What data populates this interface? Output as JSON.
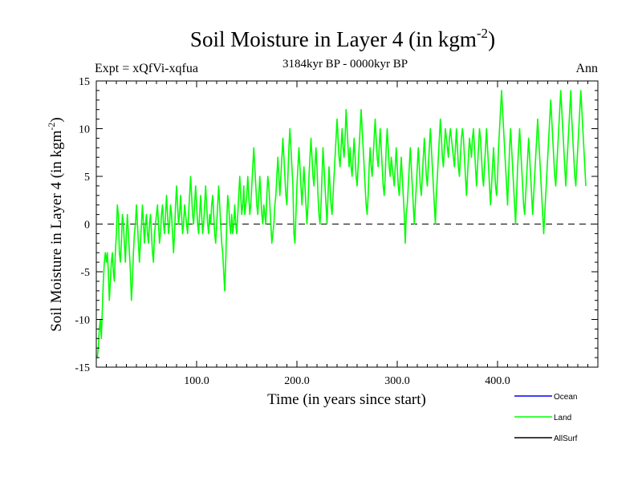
{
  "chart_data": {
    "type": "line",
    "title": "Soil Moisture in Layer 4 (in kgm",
    "title_sup": "-2",
    "title_close": ")",
    "subtitle": "3184kyr BP - 0000kyr BP",
    "expt_label": "Expt = xQfVi-xqfua",
    "season_label": "Ann",
    "xlabel": "Time (in years since start)",
    "ylabel": "Soil Moisture in Layer 4 (in kgm",
    "ylabel_sup": "-2",
    "ylabel_close": ")",
    "xlim": [
      0,
      500
    ],
    "ylim": [
      -15,
      15
    ],
    "x_ticks": [
      {
        "value": 100,
        "label": "100.0"
      },
      {
        "value": 200,
        "label": "200.0"
      },
      {
        "value": 300,
        "label": "300.0"
      },
      {
        "value": 400,
        "label": "400.0"
      }
    ],
    "y_ticks": [
      {
        "value": 15,
        "label": "15"
      },
      {
        "value": 10,
        "label": "10"
      },
      {
        "value": 5,
        "label": "5"
      },
      {
        "value": 0,
        "label": "0"
      },
      {
        "value": -5,
        "label": "-5"
      },
      {
        "value": -10,
        "label": "-10"
      },
      {
        "value": -15,
        "label": "-15"
      }
    ],
    "zero_line": 0,
    "legend": [
      {
        "name": "Ocean",
        "color": "#0000ff"
      },
      {
        "name": "Land",
        "color": "#00ff00"
      },
      {
        "name": "AllSurf",
        "color": "#000000"
      }
    ],
    "series": [
      {
        "name": "Land",
        "color": "#00ff00",
        "x_start": 1,
        "x_step": 1,
        "values": [
          -14,
          -13,
          -11,
          -10,
          -12,
          -9,
          -6,
          -4,
          -3,
          -4,
          -3,
          -5,
          -8,
          -6,
          -4,
          -3,
          -5,
          -6,
          -3,
          -1,
          2,
          1,
          -3,
          -4,
          -2,
          1,
          0,
          -2,
          -4,
          -1,
          1,
          -1,
          -3,
          -5,
          -8,
          -6,
          -3,
          -1,
          0,
          2,
          0,
          -2,
          -4,
          -2,
          0,
          2,
          0,
          -2,
          0,
          1,
          -1,
          -2,
          0,
          1,
          -1,
          -3,
          -4,
          -1,
          0,
          1,
          2,
          0,
          -2,
          -1,
          1,
          2,
          0,
          -1,
          1,
          3,
          1,
          -1,
          0,
          2,
          1,
          -1,
          -3,
          -1,
          2,
          4,
          2,
          0,
          1,
          3,
          1,
          -1,
          0,
          2,
          1,
          0,
          -1,
          1,
          3,
          5,
          3,
          1,
          0,
          2,
          4,
          2,
          0,
          -1,
          1,
          3,
          1,
          -1,
          0,
          2,
          4,
          2,
          0,
          -1,
          1,
          0,
          2,
          3,
          1,
          -1,
          -2,
          0,
          2,
          4,
          2,
          0,
          -2,
          -3,
          -5,
          -7,
          -4,
          0,
          3,
          2,
          0,
          -1,
          1,
          -1,
          0,
          2,
          0,
          -1,
          1,
          3,
          5,
          3,
          1,
          2,
          4,
          1,
          2,
          3,
          5,
          3,
          1,
          2,
          4,
          6,
          8,
          6,
          4,
          2,
          1,
          3,
          5,
          3,
          1,
          0,
          2,
          1,
          0,
          3,
          5,
          4,
          2,
          0,
          -2,
          -1,
          0,
          2,
          3,
          5,
          7,
          5,
          3,
          5,
          7,
          9,
          7,
          5,
          3,
          2,
          5,
          8,
          10,
          8,
          6,
          4,
          -1,
          -2,
          1,
          4,
          6,
          8,
          6,
          4,
          2,
          4,
          6,
          4,
          2,
          0,
          2,
          5,
          7,
          9,
          7,
          5,
          4,
          6,
          8,
          6,
          3,
          1,
          0,
          2,
          5,
          8,
          6,
          4,
          2,
          0,
          3,
          6,
          4,
          2,
          1,
          3,
          5,
          7,
          9,
          11,
          9,
          7,
          6,
          8,
          10,
          8,
          7,
          9,
          12,
          10,
          8,
          6,
          8,
          6,
          5,
          7,
          9,
          7,
          5,
          4,
          6,
          8,
          10,
          12,
          10,
          8,
          6,
          4,
          2,
          1,
          3,
          6,
          8,
          6,
          5,
          7,
          9,
          11,
          9,
          7,
          6,
          8,
          10,
          8,
          6,
          4,
          3,
          5,
          8,
          10,
          8,
          6,
          5,
          7,
          6,
          5,
          4,
          6,
          8,
          6,
          4,
          3,
          5,
          7,
          5,
          3,
          1,
          -2,
          1,
          2,
          4,
          6,
          8,
          6,
          4,
          2,
          0,
          2,
          4,
          6,
          8,
          6,
          4,
          3,
          5,
          7,
          9,
          7,
          5,
          4,
          6,
          8,
          10,
          8,
          6,
          4,
          2,
          0,
          3,
          5,
          7,
          9,
          11,
          9,
          7,
          6,
          8,
          10,
          9,
          8,
          7,
          9,
          10,
          9,
          8,
          7,
          6,
          8,
          10,
          8,
          6,
          5,
          7,
          9,
          10,
          9,
          7,
          5,
          3,
          5,
          7,
          9,
          8,
          7,
          9,
          10,
          8,
          6,
          4,
          6,
          8,
          10,
          9,
          7,
          5,
          4,
          6,
          8,
          10,
          8,
          6,
          4,
          2,
          4,
          6,
          8,
          6,
          4,
          3,
          5,
          8,
          10,
          12,
          14,
          12,
          10,
          8,
          6,
          4,
          2,
          5,
          8,
          10,
          8,
          6,
          4,
          2,
          0,
          3,
          6,
          8,
          10,
          8,
          6,
          4,
          2,
          1,
          3,
          5,
          7,
          9,
          7,
          5,
          3,
          1,
          3,
          5,
          7,
          9,
          11,
          9,
          7,
          5,
          3,
          1,
          -1,
          1,
          3,
          5,
          7,
          9,
          11,
          13,
          11,
          9,
          7,
          5,
          4,
          6,
          8,
          10,
          12,
          14,
          12,
          10,
          8,
          6,
          4,
          6,
          8,
          10,
          12,
          14,
          11,
          9,
          7,
          5,
          4,
          6,
          8,
          10,
          12,
          14,
          12,
          10,
          8,
          6,
          4
        ]
      }
    ]
  }
}
